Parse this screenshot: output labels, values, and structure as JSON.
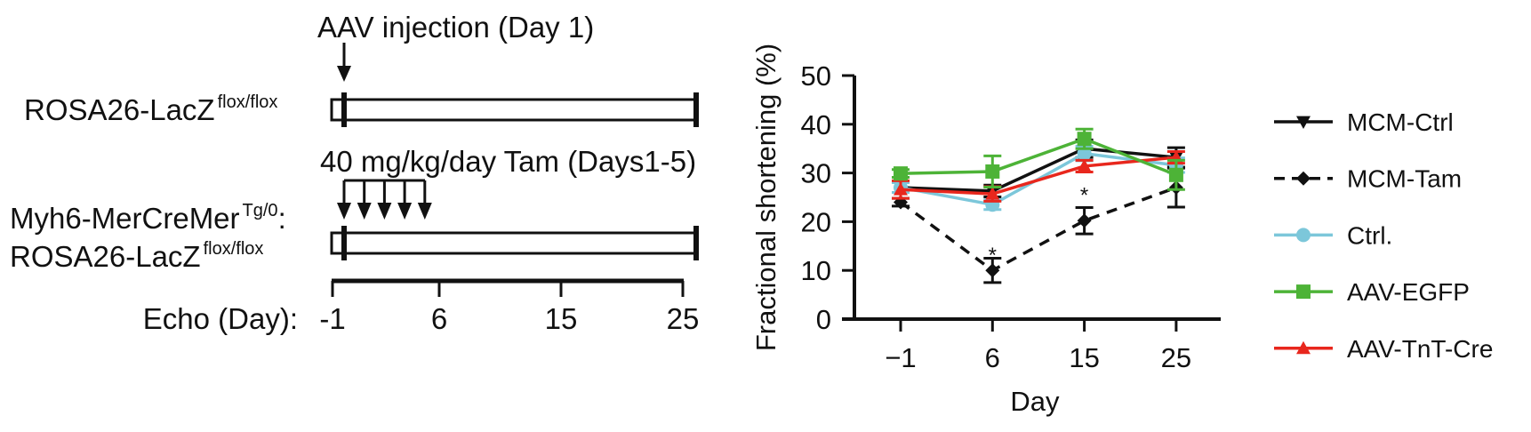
{
  "diagram": {
    "aav_label": "AAV injection (Day 1)",
    "tam_label": "40 mg/kg/day Tam (Days1-5)",
    "group1": {
      "name": "ROSA26-LacZ",
      "sup": "flox/flox"
    },
    "group2_line1": {
      "name": "Myh6-MerCreMer",
      "sup": "Tg/0",
      "suffix": ":"
    },
    "group2_line2": {
      "name": "ROSA26-LacZ",
      "sup": "flox/flox"
    },
    "echo_label": "Echo (Day):",
    "echo_days": [
      "-1",
      "6",
      "15",
      "25"
    ]
  },
  "chart_data": {
    "type": "line",
    "title": "",
    "xlabel": "Day",
    "ylabel": "Fractional shortening (%)",
    "categories": [
      "−1",
      "6",
      "15",
      "25"
    ],
    "ylim": [
      0,
      50
    ],
    "yticks": [
      "0",
      "10",
      "20",
      "30",
      "40",
      "50"
    ],
    "legend_position": "right",
    "annotations": [
      {
        "category": "6",
        "text": "*",
        "y": 13.5
      },
      {
        "category": "15",
        "text": "*",
        "y": 25.8
      }
    ],
    "series": [
      {
        "name": "MCM-Tam",
        "color": "#111111",
        "marker": "diamond",
        "dash": true,
        "values": [
          24,
          10,
          20.2,
          27
        ],
        "errors": [
          0.8,
          2.5,
          2.7,
          4
        ]
      },
      {
        "name": "MCM-Ctrl",
        "color": "#111111",
        "marker": "triangle-down",
        "dash": false,
        "values": [
          27,
          26.3,
          35,
          33.2
        ],
        "errors": [
          1,
          1.2,
          1.8,
          2
        ]
      },
      {
        "name": "Ctrl.",
        "color": "#7cc7da",
        "marker": "circle",
        "dash": false,
        "values": [
          27,
          23.5,
          34,
          31.6
        ],
        "errors": [
          1,
          1,
          1.5,
          1.5
        ]
      },
      {
        "name": "AAV-TnT-Cre",
        "color": "#e8271d",
        "marker": "triangle-up",
        "dash": false,
        "values": [
          26.6,
          25.7,
          31.4,
          33.2
        ],
        "errors": [
          1.8,
          1.5,
          1.2,
          1.2
        ]
      },
      {
        "name": "AAV-EGFP",
        "color": "#4db337",
        "marker": "square",
        "dash": false,
        "values": [
          29.9,
          30.3,
          37,
          29.6
        ],
        "errors": [
          0.8,
          3.2,
          2,
          3
        ]
      }
    ],
    "legend_order": [
      "MCM-Ctrl",
      "MCM-Tam",
      "Ctrl.",
      "AAV-EGFP",
      "AAV-TnT-Cre"
    ]
  }
}
